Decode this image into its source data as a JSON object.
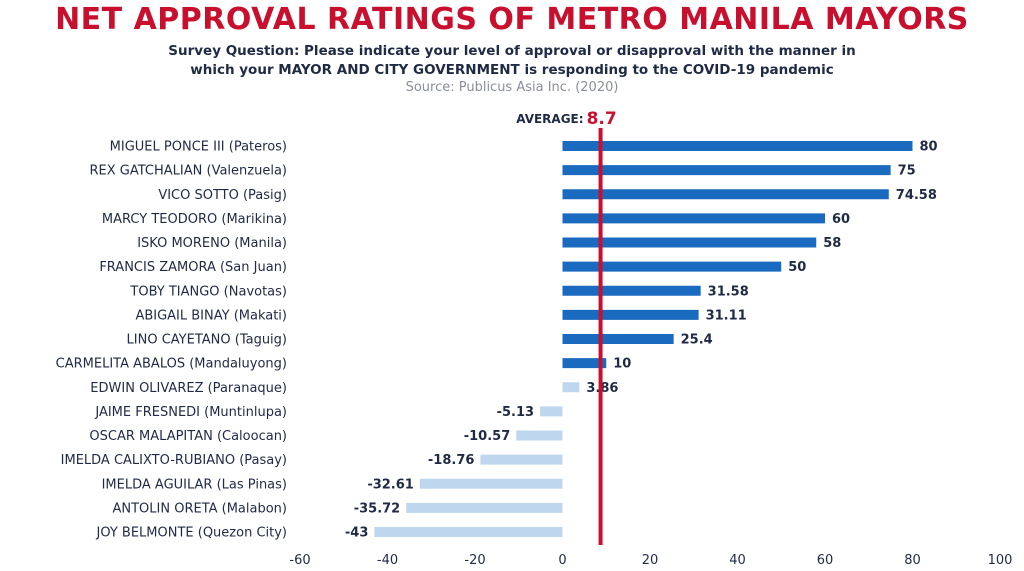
{
  "chart_data": {
    "type": "bar",
    "orientation": "horizontal",
    "title": "NET APPROVAL RATINGS OF METRO MANILA MAYORS",
    "subtitle_line1": "Survey Question: Please indicate your level of approval or disapproval with the manner in",
    "subtitle_line2": "which your MAYOR AND CITY GOVERNMENT is responding to the COVID-19 pandemic",
    "source": "Source: Publicus Asia Inc. (2020)",
    "average_label": "AVERAGE:",
    "average_value_label": "8.7",
    "average_value": 8.7,
    "categories": [
      "MIGUEL PONCE III (Pateros)",
      "REX GATCHALIAN (Valenzuela)",
      "VICO SOTTO (Pasig)",
      "MARCY TEODORO (Marikina)",
      "ISKO MORENO (Manila)",
      "FRANCIS ZAMORA (San Juan)",
      "TOBY TIANGO (Navotas)",
      "ABIGAIL BINAY (Makati)",
      "LINO CAYETANO (Taguig)",
      "CARMELITA ABALOS (Mandaluyong)",
      "EDWIN OLIVAREZ (Paranaque)",
      "JAIME FRESNEDI (Muntinlupa)",
      "OSCAR MALAPITAN (Caloocan)",
      "IMELDA CALIXTO-RUBIANO (Pasay)",
      "IMELDA AGUILAR (Las Pinas)",
      "ANTOLIN ORETA (Malabon)",
      "JOY BELMONTE (Quezon City)"
    ],
    "values": [
      80,
      75,
      74.58,
      60,
      58,
      50,
      31.58,
      31.11,
      25.4,
      10,
      3.86,
      -5.13,
      -10.57,
      -18.76,
      -32.61,
      -35.72,
      -43
    ],
    "value_labels": [
      "80",
      "75",
      "74.58",
      "60",
      "58",
      "50",
      "31.58",
      "31.11",
      "25.4",
      "10",
      "3.86",
      "-5.13",
      "-10.57",
      "-18.76",
      "-32.61",
      "-35.72",
      "-43"
    ],
    "xlim": [
      -60,
      100
    ],
    "xticks": [
      -60,
      -40,
      -20,
      0,
      20,
      40,
      60,
      80,
      100
    ],
    "xtick_labels": [
      "-60",
      "-40",
      "-20",
      "0",
      "20",
      "40",
      "60",
      "80",
      "100"
    ],
    "grid": false,
    "legend": "none",
    "colors": {
      "strong_positive": "#1a6bbf",
      "weak": "#bfd7ee",
      "average_line": "#c8102e",
      "title": "#c8102e",
      "text": "#1f2a44"
    }
  }
}
